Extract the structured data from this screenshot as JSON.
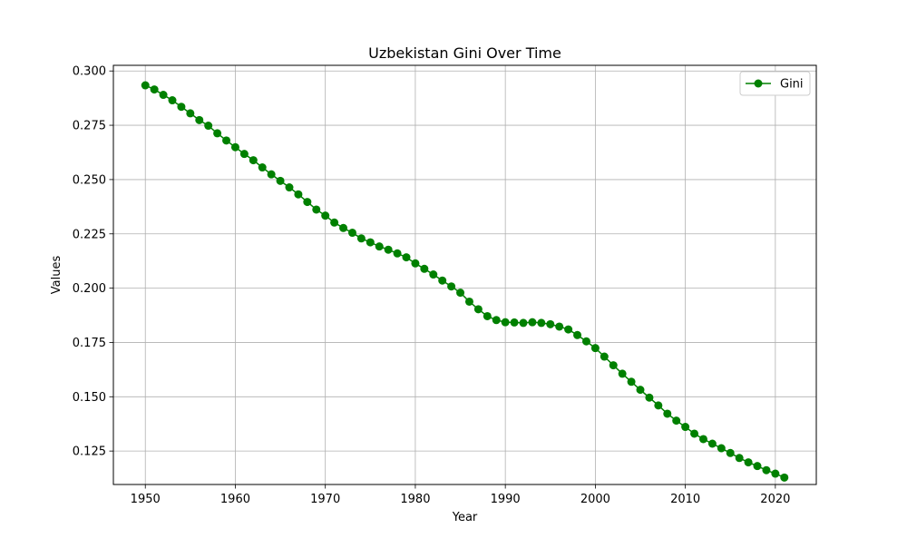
{
  "chart_data": {
    "type": "line",
    "title": "Uzbekistan Gini Over Time",
    "xlabel": "Year",
    "ylabel": "Values",
    "xlim": [
      1946.45,
      2024.55
    ],
    "ylim": [
      0.1096,
      0.3026
    ],
    "x_ticks": [
      1950,
      1960,
      1970,
      1980,
      1990,
      2000,
      2010,
      2020
    ],
    "y_ticks": [
      0.125,
      0.15,
      0.175,
      0.2,
      0.225,
      0.25,
      0.275,
      0.3
    ],
    "y_tick_labels": [
      "0.125",
      "0.150",
      "0.175",
      "0.200",
      "0.225",
      "0.250",
      "0.275",
      "0.300"
    ],
    "grid": true,
    "legend_position": "top-right",
    "series": [
      {
        "name": "Gini",
        "color": "#008000",
        "marker": "circle",
        "x": [
          1950,
          1951,
          1952,
          1953,
          1954,
          1955,
          1956,
          1957,
          1958,
          1959,
          1960,
          1961,
          1962,
          1963,
          1964,
          1965,
          1966,
          1967,
          1968,
          1969,
          1970,
          1971,
          1972,
          1973,
          1974,
          1975,
          1976,
          1977,
          1978,
          1979,
          1980,
          1981,
          1982,
          1983,
          1984,
          1985,
          1986,
          1987,
          1988,
          1989,
          1990,
          1991,
          1992,
          1993,
          1994,
          1995,
          1996,
          1997,
          1998,
          1999,
          2000,
          2001,
          2002,
          2003,
          2004,
          2005,
          2006,
          2007,
          2008,
          2009,
          2010,
          2011,
          2012,
          2013,
          2014,
          2015,
          2016,
          2017,
          2018,
          2019,
          2020,
          2021
        ],
        "values": [
          0.2934,
          0.2915,
          0.289,
          0.2865,
          0.2835,
          0.2805,
          0.2774,
          0.2748,
          0.2713,
          0.268,
          0.2649,
          0.2618,
          0.2589,
          0.2556,
          0.2524,
          0.2494,
          0.2464,
          0.2432,
          0.2397,
          0.2362,
          0.2334,
          0.2302,
          0.2277,
          0.2255,
          0.2229,
          0.2211,
          0.2192,
          0.2177,
          0.216,
          0.2142,
          0.2114,
          0.2089,
          0.2063,
          0.2035,
          0.2008,
          0.1979,
          0.1938,
          0.1903,
          0.1871,
          0.1853,
          0.1843,
          0.1842,
          0.184,
          0.1843,
          0.184,
          0.1834,
          0.1823,
          0.181,
          0.1784,
          0.1755,
          0.1724,
          0.1685,
          0.1645,
          0.1606,
          0.1569,
          0.1532,
          0.1496,
          0.146,
          0.1422,
          0.139,
          0.1361,
          0.133,
          0.1305,
          0.1284,
          0.1263,
          0.1241,
          0.1218,
          0.1198,
          0.1181,
          0.1162,
          0.1146,
          0.1128
        ]
      }
    ]
  }
}
